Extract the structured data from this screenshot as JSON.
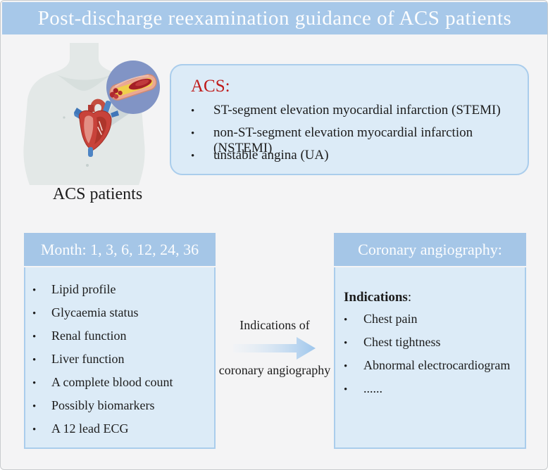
{
  "title": "Post-discharge reexamination guidance of ACS patients",
  "patient": {
    "label": "ACS patients"
  },
  "acs_panel": {
    "heading": "ACS:",
    "items": [
      "ST-segment elevation myocardial infarction (STEMI)",
      "non-ST-segment elevation myocardial infarction (NSTEMI)",
      "unstable angina (UA)"
    ]
  },
  "followup_panel": {
    "header": "Month: 1, 3, 6, 12, 24, 36",
    "items": [
      "Lipid profile",
      "Glycaemia status",
      "Renal function",
      "Liver function",
      "A complete blood count",
      "Possibly biomarkers",
      "A 12 lead ECG"
    ]
  },
  "arrow": {
    "label_top": "Indications of",
    "label_bottom": "coronary angiography"
  },
  "angiography_panel": {
    "header": "Coronary angiography:",
    "subheading": "Indications",
    "subheading_colon": ":",
    "items": [
      "Chest pain",
      "Chest tightness",
      "Abnormal electrocardiogram",
      "......"
    ]
  },
  "colors": {
    "title_bar": "#a7c8e9",
    "panel_header": "#a5c6e7",
    "panel_fill": "#dcebf7",
    "panel_border": "#aacdec",
    "page_background": "#f4f4f5",
    "acs_heading_red": "#bf1b1b",
    "text": "#1c1c1c",
    "callout_circle": "#8194c5",
    "arrow_gradient_start": "#edf2f7",
    "arrow_gradient_end": "#9ec6ec"
  }
}
